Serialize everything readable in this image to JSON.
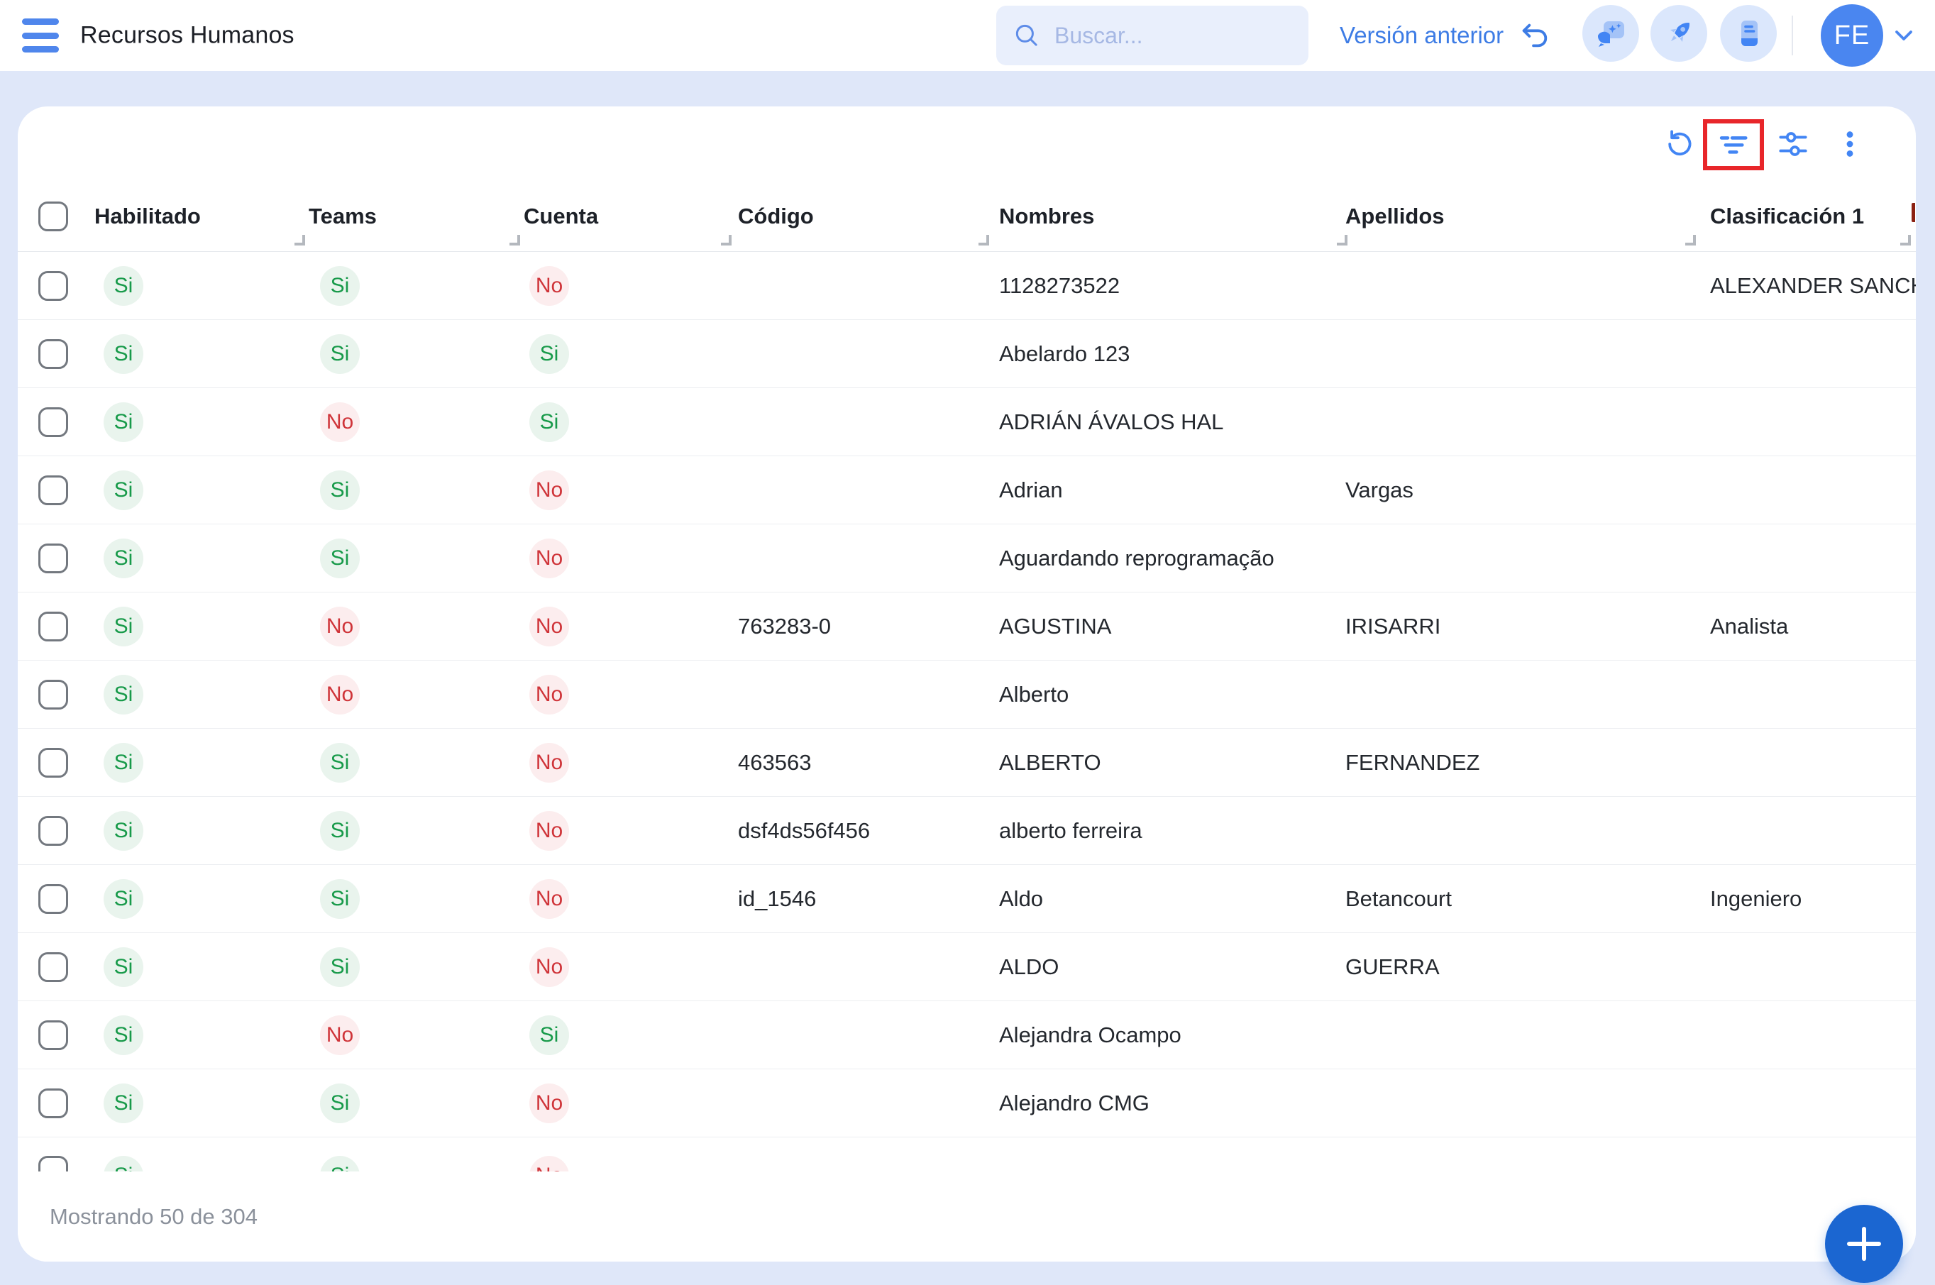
{
  "topbar": {
    "title": "Recursos Humanos",
    "search": {
      "placeholder": "Buscar..."
    },
    "version_link": "Versión anterior",
    "avatar_initials": "FE",
    "icon_names": [
      "menu-icon",
      "search-icon",
      "undo-icon",
      "chat-sparkles-icon",
      "rocket-icon",
      "notebook-icon",
      "chevron-down-icon"
    ]
  },
  "toolbar": {
    "icon_names": [
      "refresh-icon",
      "filter-icon",
      "sliders-icon",
      "more-vertical-icon"
    ],
    "highlighted_icon": "filter-icon"
  },
  "table": {
    "columns": [
      "Habilitado",
      "Teams",
      "Cuenta",
      "Código",
      "Nombres",
      "Apellidos",
      "Clasificación 1"
    ],
    "rows": [
      {
        "habilitado": "Si",
        "teams": "Si",
        "cuenta": "No",
        "codigo": "",
        "nombres": "1128273522",
        "apellidos": "",
        "clasificacion1": "ALEXANDER SANCH..."
      },
      {
        "habilitado": "Si",
        "teams": "Si",
        "cuenta": "Si",
        "codigo": "",
        "nombres": "Abelardo 123",
        "apellidos": "",
        "clasificacion1": ""
      },
      {
        "habilitado": "Si",
        "teams": "No",
        "cuenta": "Si",
        "codigo": "",
        "nombres": "ADRIÁN ÁVALOS HAL",
        "apellidos": "",
        "clasificacion1": ""
      },
      {
        "habilitado": "Si",
        "teams": "Si",
        "cuenta": "No",
        "codigo": "",
        "nombres": "Adrian",
        "apellidos": "Vargas",
        "clasificacion1": ""
      },
      {
        "habilitado": "Si",
        "teams": "Si",
        "cuenta": "No",
        "codigo": "",
        "nombres": "Aguardando reprogramação",
        "apellidos": "",
        "clasificacion1": ""
      },
      {
        "habilitado": "Si",
        "teams": "No",
        "cuenta": "No",
        "codigo": "763283-0",
        "nombres": "AGUSTINA",
        "apellidos": "IRISARRI",
        "clasificacion1": "Analista"
      },
      {
        "habilitado": "Si",
        "teams": "No",
        "cuenta": "No",
        "codigo": "",
        "nombres": "Alberto",
        "apellidos": "",
        "clasificacion1": ""
      },
      {
        "habilitado": "Si",
        "teams": "Si",
        "cuenta": "No",
        "codigo": "463563",
        "nombres": "ALBERTO",
        "apellidos": "FERNANDEZ",
        "clasificacion1": ""
      },
      {
        "habilitado": "Si",
        "teams": "Si",
        "cuenta": "No",
        "codigo": "dsf4ds56f456",
        "nombres": "alberto ferreira",
        "apellidos": "",
        "clasificacion1": ""
      },
      {
        "habilitado": "Si",
        "teams": "Si",
        "cuenta": "No",
        "codigo": "id_1546",
        "nombres": "Aldo",
        "apellidos": "Betancourt",
        "clasificacion1": "Ingeniero"
      },
      {
        "habilitado": "Si",
        "teams": "Si",
        "cuenta": "No",
        "codigo": "",
        "nombres": "ALDO",
        "apellidos": "GUERRA",
        "clasificacion1": ""
      },
      {
        "habilitado": "Si",
        "teams": "No",
        "cuenta": "Si",
        "codigo": "",
        "nombres": "Alejandra Ocampo",
        "apellidos": "",
        "clasificacion1": ""
      },
      {
        "habilitado": "Si",
        "teams": "Si",
        "cuenta": "No",
        "codigo": "",
        "nombres": "Alejandro CMG",
        "apellidos": "",
        "clasificacion1": ""
      }
    ],
    "partial_row": {
      "habilitado": "Si",
      "teams": "Si",
      "cuenta": "No"
    }
  },
  "footer": {
    "summary": "Mostrando 50 de 304"
  },
  "fab": {
    "label": "+"
  },
  "colors": {
    "accent_blue": "#4285f4",
    "link_blue": "#3d7ce5",
    "avatar_blue": "#4a86f0",
    "fab_blue": "#1b66d1",
    "badge_green_text": "#189a4a",
    "badge_green_bg": "#e9f4ed",
    "badge_red_text": "#cf3439",
    "badge_red_bg": "#fcedee",
    "annotation_red": "#e8262a",
    "page_bg": "#dfe7f9"
  }
}
